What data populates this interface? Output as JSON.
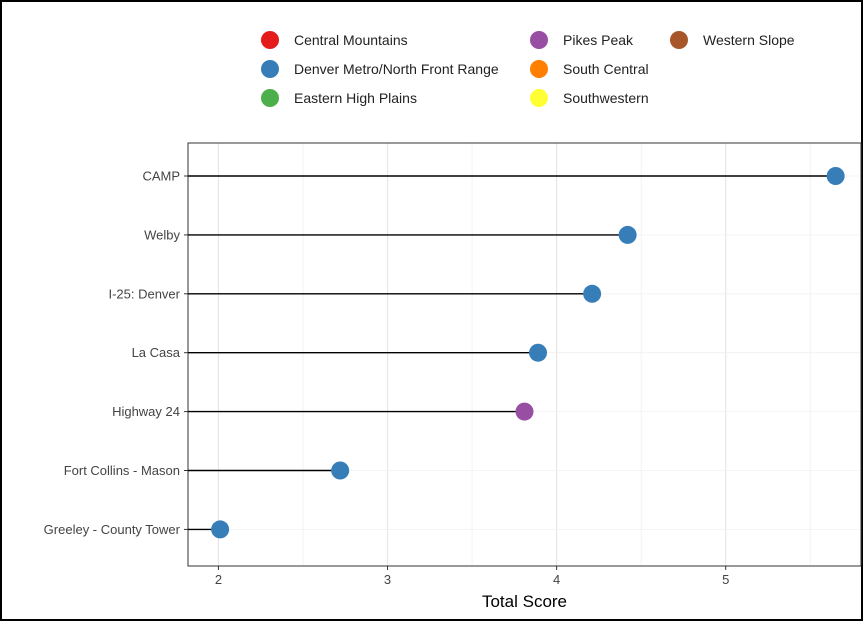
{
  "chart_data": {
    "type": "lollipop",
    "xlabel": "Total Score",
    "ylabel": "",
    "xlim": [
      1.82,
      5.8
    ],
    "xticks": [
      2,
      3,
      4,
      5
    ],
    "grid": true,
    "legend_position": "top",
    "legend": [
      {
        "name": "Central Mountains",
        "color": "#e41a1c"
      },
      {
        "name": "Denver Metro/North Front Range",
        "color": "#377eb8"
      },
      {
        "name": "Eastern High Plains",
        "color": "#4daf4a"
      },
      {
        "name": "Pikes Peak",
        "color": "#984ea3"
      },
      {
        "name": "South Central",
        "color": "#ff7f00"
      },
      {
        "name": "Southwestern",
        "color": "#ffff33"
      },
      {
        "name": "Western Slope",
        "color": "#a65628"
      }
    ],
    "categories": [
      "CAMP",
      "Welby",
      "I-25: Denver",
      "La Casa",
      "Highway 24",
      "Fort Collins - Mason",
      "Greeley - County Tower"
    ],
    "values": [
      5.65,
      4.42,
      4.21,
      3.89,
      3.81,
      2.72,
      2.01
    ],
    "regions": [
      "Denver Metro/North Front Range",
      "Denver Metro/North Front Range",
      "Denver Metro/North Front Range",
      "Denver Metro/North Front Range",
      "Pikes Peak",
      "Denver Metro/North Front Range",
      "Denver Metro/North Front Range"
    ]
  }
}
